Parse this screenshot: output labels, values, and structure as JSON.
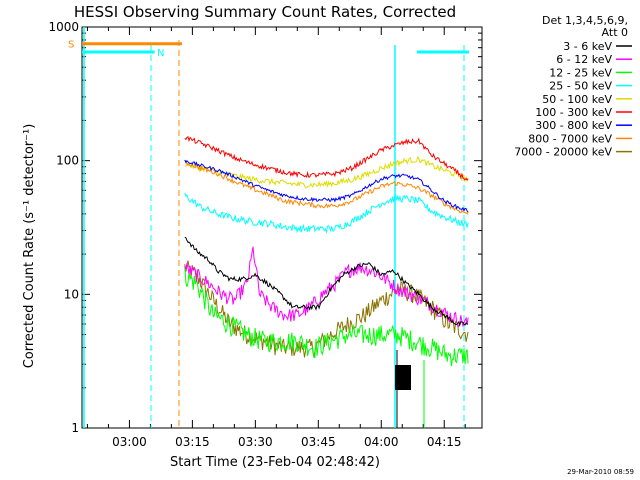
{
  "chart_data": {
    "type": "line",
    "title": "HESSI Observing Summary Count Rates, Corrected",
    "xlabel": "Start Time (23-Feb-04 02:48:42)",
    "ylabel": "Corrected Count Rate (s⁻¹ detector⁻¹)",
    "yscale": "log",
    "ylim": [
      1,
      1000
    ],
    "y_ticks": [
      "1",
      "10",
      "100",
      "1000"
    ],
    "x_ticks": [
      "03:00",
      "03:15",
      "03:30",
      "03:45",
      "04:00",
      "04:15"
    ],
    "x_tick_minutes": [
      180,
      195,
      210,
      225,
      240,
      255
    ],
    "xlim_minutes": [
      168.7,
      264
    ],
    "legend_header": [
      "Det 1,3,4,5,6,9,",
      "Att 0"
    ],
    "legend_position": "right",
    "timestamp": "29-Mar-2010 08:59",
    "series": [
      {
        "name": "3 - 6 keV",
        "color": "#000000",
        "x": [
          193.2,
          196,
          199,
          201,
          204,
          207,
          210,
          213,
          216,
          219,
          222,
          225,
          228,
          231,
          234,
          237,
          240,
          243,
          246,
          249,
          252,
          255,
          258,
          260.9
        ],
        "y": [
          27,
          21,
          18,
          15,
          13,
          13,
          14,
          12,
          10,
          8,
          8,
          8,
          11,
          14,
          16,
          17,
          14,
          15,
          12,
          10,
          8,
          7,
          6,
          6
        ]
      },
      {
        "name": "6 - 12 keV",
        "color": "#ff00ff",
        "x": [
          193.2,
          196,
          199,
          202,
          205,
          208,
          209.5,
          211,
          214,
          217,
          220,
          223,
          226,
          229,
          232,
          235,
          238,
          241,
          244,
          247,
          250,
          253,
          256,
          260.9
        ],
        "y": [
          16,
          14,
          12,
          10,
          9,
          12,
          22,
          10,
          8,
          7,
          7,
          8,
          10,
          12,
          15,
          16,
          15,
          13,
          11,
          10,
          9,
          8,
          7,
          6
        ]
      },
      {
        "name": "12 - 25 keV",
        "color": "#00ff00",
        "x": [
          193.2,
          196,
          200,
          204,
          208,
          212,
          216,
          220,
          224,
          228,
          232,
          236,
          240,
          244,
          248,
          252,
          256,
          260.9
        ],
        "y": [
          14,
          12,
          7,
          6,
          5,
          4.5,
          4.5,
          4.5,
          4,
          4.5,
          5,
          5,
          5,
          5,
          4.5,
          4,
          3.5,
          3.5
        ]
      },
      {
        "name": "25 - 50 keV",
        "color": "#00ffff",
        "x": [
          193.2,
          197,
          201,
          205,
          209,
          213,
          217,
          221,
          225,
          229,
          233,
          237,
          240,
          243,
          246,
          249,
          252,
          255,
          258,
          260.9
        ],
        "y": [
          55,
          45,
          40,
          37,
          35,
          34,
          32,
          31,
          31,
          31,
          35,
          42,
          48,
          52,
          52,
          50,
          42,
          38,
          35,
          33
        ]
      },
      {
        "name": "50 - 100 keV",
        "color": "#dddd00",
        "x": [
          193.2,
          197,
          201,
          205,
          209,
          213,
          217,
          221,
          225,
          229,
          233,
          237,
          240,
          243,
          246,
          249,
          252,
          255,
          258,
          260.9
        ],
        "y": [
          95,
          88,
          82,
          77,
          73,
          70,
          68,
          66,
          66,
          68,
          72,
          80,
          88,
          95,
          100,
          102,
          92,
          85,
          78,
          72
        ]
      },
      {
        "name": "100 - 300 keV",
        "color": "#ff0000",
        "x": [
          193.2,
          197,
          201,
          205,
          209,
          213,
          217,
          221,
          225,
          229,
          233,
          237,
          240,
          243,
          246,
          249,
          252,
          255,
          258,
          260.9
        ],
        "y": [
          150,
          135,
          120,
          105,
          95,
          88,
          82,
          78,
          78,
          80,
          88,
          105,
          120,
          130,
          138,
          140,
          110,
          95,
          82,
          70
        ]
      },
      {
        "name": "300 - 800 keV",
        "color": "#0000ff",
        "x": [
          193.2,
          197,
          201,
          205,
          209,
          213,
          217,
          221,
          225,
          229,
          233,
          237,
          240,
          243,
          246,
          249,
          252,
          255,
          258,
          260.9
        ],
        "y": [
          100,
          92,
          85,
          76,
          67,
          60,
          55,
          52,
          51,
          51,
          55,
          65,
          73,
          77,
          77,
          72,
          60,
          50,
          45,
          42
        ]
      },
      {
        "name": "800 - 7000 keV",
        "color": "#ff8800",
        "x": [
          193.2,
          197,
          201,
          205,
          209,
          213,
          217,
          221,
          225,
          229,
          233,
          237,
          240,
          243,
          246,
          249,
          252,
          255,
          258,
          260.9
        ],
        "y": [
          97,
          88,
          80,
          70,
          62,
          56,
          50,
          48,
          46,
          46,
          50,
          58,
          64,
          68,
          66,
          62,
          55,
          48,
          43,
          40
        ]
      },
      {
        "name": "7000 - 20000 keV",
        "color": "#8b7300",
        "x": [
          193.2,
          196,
          200,
          204,
          208,
          212,
          216,
          220,
          224,
          228,
          232,
          236,
          240,
          244,
          248,
          252,
          256,
          260.9
        ],
        "y": [
          16,
          14,
          9,
          6,
          5,
          4.5,
          4,
          4,
          4,
          5,
          6,
          7,
          9,
          11,
          10,
          8,
          6,
          5
        ]
      }
    ],
    "markers": [
      {
        "label": "S",
        "color": "#ff8800",
        "y": 750,
        "x_start": 168.7,
        "x_end": 192.5
      },
      {
        "label": "N",
        "color": "#00ffff",
        "y": 650,
        "x_start": 168.7,
        "x_end": 186
      },
      {
        "label": "",
        "color": "#00ffff",
        "y": 650,
        "x_start": 248.5,
        "x_end": 260.9
      }
    ]
  }
}
